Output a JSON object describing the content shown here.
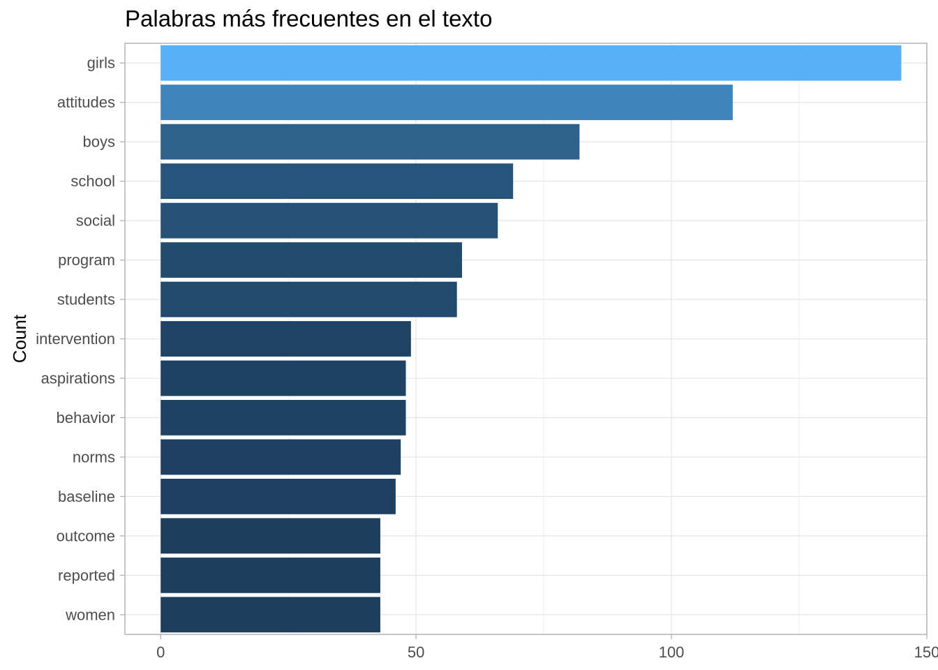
{
  "chart_data": {
    "type": "bar",
    "orientation": "horizontal",
    "title": "Palabras más frecuentes en el texto",
    "xlabel": "",
    "ylabel": "Count",
    "categories": [
      "girls",
      "attitudes",
      "boys",
      "school",
      "social",
      "program",
      "students",
      "intervention",
      "aspirations",
      "behavior",
      "norms",
      "baseline",
      "outcome",
      "reported",
      "women"
    ],
    "values": [
      145,
      112,
      82,
      69,
      66,
      59,
      58,
      49,
      48,
      48,
      47,
      46,
      43,
      43,
      43
    ],
    "xlim": [
      -7,
      150
    ],
    "x_ticks": [
      0,
      50,
      100,
      150
    ],
    "grid": true,
    "legend": "none",
    "color_low": "#132B43",
    "color_high": "#56B1F7",
    "panel_border_color": "#b3b3b3",
    "grid_color": "#e6e6e6"
  }
}
